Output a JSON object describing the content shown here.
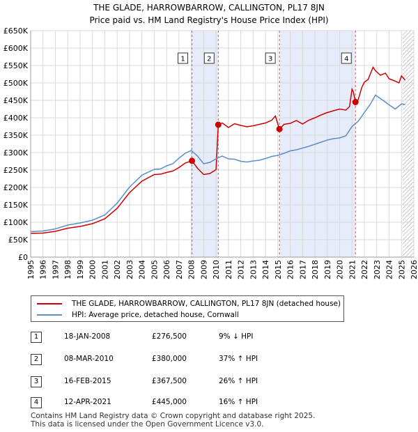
{
  "chart_data": {
    "type": "line",
    "title": "THE GLADE, HARROWBARROW, CALLINGTON, PL17 8JN",
    "subtitle": "Price paid vs. HM Land Registry's House Price Index (HPI)",
    "ylim": [
      0,
      650000
    ],
    "xlim": [
      1995,
      2026
    ],
    "y_ticks": [
      0,
      50000,
      100000,
      150000,
      200000,
      250000,
      300000,
      350000,
      400000,
      450000,
      500000,
      550000,
      600000,
      650000
    ],
    "y_tick_labels": [
      "£0",
      "£50K",
      "£100K",
      "£150K",
      "£200K",
      "£250K",
      "£300K",
      "£350K",
      "£400K",
      "£450K",
      "£500K",
      "£550K",
      "£600K",
      "£650K"
    ],
    "x_ticks": [
      1995,
      1996,
      1997,
      1998,
      1999,
      2000,
      2001,
      2002,
      2003,
      2004,
      2005,
      2006,
      2007,
      2008,
      2009,
      2010,
      2011,
      2012,
      2013,
      2014,
      2015,
      2016,
      2017,
      2018,
      2019,
      2020,
      2021,
      2022,
      2023,
      2024,
      2025,
      2026
    ],
    "x_tick_labels": [
      "1995",
      "1996",
      "1997",
      "1998",
      "1999",
      "2000",
      "2001",
      "2002",
      "2003",
      "2004",
      "2005",
      "2006",
      "2007",
      "2008",
      "2009",
      "2010",
      "2011",
      "2012",
      "2013",
      "2014",
      "2015",
      "2016",
      "2017",
      "2018",
      "2019",
      "2020",
      "2021",
      "2022",
      "2023",
      "2024",
      "2025",
      "2026"
    ],
    "grid": true,
    "series": [
      {
        "name": "THE GLADE, HARROWBARROW, CALLINGTON, PL17 8JN (detached house)",
        "color": "#cc0000",
        "points": [
          [
            1995.0,
            68000
          ],
          [
            1996.0,
            69000
          ],
          [
            1997.0,
            74000
          ],
          [
            1998.0,
            83000
          ],
          [
            1999.0,
            88000
          ],
          [
            2000.0,
            96000
          ],
          [
            2001.0,
            110000
          ],
          [
            2002.0,
            140000
          ],
          [
            2003.0,
            185000
          ],
          [
            2004.0,
            218000
          ],
          [
            2005.0,
            237000
          ],
          [
            2005.5,
            238000
          ],
          [
            2006.0,
            243000
          ],
          [
            2006.5,
            247000
          ],
          [
            2007.0,
            257000
          ],
          [
            2007.5,
            270000
          ],
          [
            2008.05,
            276500
          ],
          [
            2008.5,
            255000
          ],
          [
            2009.0,
            237000
          ],
          [
            2009.5,
            240000
          ],
          [
            2010.0,
            251000
          ],
          [
            2010.18,
            380000
          ],
          [
            2010.5,
            385000
          ],
          [
            2011.0,
            372000
          ],
          [
            2011.5,
            383000
          ],
          [
            2012.0,
            378000
          ],
          [
            2012.5,
            374000
          ],
          [
            2013.0,
            377000
          ],
          [
            2013.5,
            381000
          ],
          [
            2014.0,
            385000
          ],
          [
            2014.5,
            393000
          ],
          [
            2014.8,
            405000
          ],
          [
            2015.13,
            367500
          ],
          [
            2015.5,
            381000
          ],
          [
            2016.0,
            384000
          ],
          [
            2016.5,
            392000
          ],
          [
            2017.0,
            382000
          ],
          [
            2017.5,
            393000
          ],
          [
            2018.0,
            400000
          ],
          [
            2018.5,
            408000
          ],
          [
            2019.0,
            415000
          ],
          [
            2019.5,
            420000
          ],
          [
            2020.0,
            425000
          ],
          [
            2020.5,
            422000
          ],
          [
            2020.8,
            432000
          ],
          [
            2021.0,
            482000
          ],
          [
            2021.1,
            475000
          ],
          [
            2021.28,
            445000
          ],
          [
            2021.5,
            452000
          ],
          [
            2021.8,
            488000
          ],
          [
            2022.0,
            502000
          ],
          [
            2022.3,
            510000
          ],
          [
            2022.7,
            545000
          ],
          [
            2022.9,
            535000
          ],
          [
            2023.3,
            522000
          ],
          [
            2023.7,
            528000
          ],
          [
            2024.0,
            512000
          ],
          [
            2024.5,
            505000
          ],
          [
            2024.8,
            500000
          ],
          [
            2025.0,
            520000
          ],
          [
            2025.3,
            508000
          ]
        ]
      },
      {
        "name": "HPI: Average price, detached house, Cornwall",
        "color": "#5b8ec7",
        "points": [
          [
            1995.0,
            73000
          ],
          [
            1996.0,
            75000
          ],
          [
            1997.0,
            81000
          ],
          [
            1998.0,
            92000
          ],
          [
            1999.0,
            98000
          ],
          [
            2000.0,
            106000
          ],
          [
            2001.0,
            121000
          ],
          [
            2002.0,
            155000
          ],
          [
            2003.0,
            201000
          ],
          [
            2004.0,
            235000
          ],
          [
            2005.0,
            252000
          ],
          [
            2005.5,
            253000
          ],
          [
            2006.0,
            262000
          ],
          [
            2006.5,
            268000
          ],
          [
            2007.0,
            284000
          ],
          [
            2007.5,
            298000
          ],
          [
            2008.0,
            306000
          ],
          [
            2008.5,
            290000
          ],
          [
            2009.0,
            268000
          ],
          [
            2009.5,
            272000
          ],
          [
            2010.0,
            282000
          ],
          [
            2010.5,
            290000
          ],
          [
            2011.0,
            282000
          ],
          [
            2011.5,
            281000
          ],
          [
            2012.0,
            275000
          ],
          [
            2012.5,
            273000
          ],
          [
            2013.0,
            276000
          ],
          [
            2013.5,
            278000
          ],
          [
            2014.0,
            283000
          ],
          [
            2014.5,
            289000
          ],
          [
            2015.0,
            292000
          ],
          [
            2015.5,
            298000
          ],
          [
            2016.0,
            305000
          ],
          [
            2016.5,
            308000
          ],
          [
            2017.0,
            313000
          ],
          [
            2017.5,
            318000
          ],
          [
            2018.0,
            324000
          ],
          [
            2018.5,
            330000
          ],
          [
            2019.0,
            336000
          ],
          [
            2019.5,
            340000
          ],
          [
            2020.0,
            342000
          ],
          [
            2020.5,
            348000
          ],
          [
            2021.0,
            375000
          ],
          [
            2021.5,
            390000
          ],
          [
            2022.0,
            415000
          ],
          [
            2022.5,
            440000
          ],
          [
            2022.9,
            465000
          ],
          [
            2023.3,
            455000
          ],
          [
            2023.7,
            445000
          ],
          [
            2024.0,
            437000
          ],
          [
            2024.5,
            425000
          ],
          [
            2025.0,
            440000
          ],
          [
            2025.3,
            438000
          ]
        ]
      }
    ],
    "events": [
      {
        "label": "1",
        "x": 2008.05,
        "value": 276500
      },
      {
        "label": "2",
        "x": 2010.18,
        "value": 380000
      },
      {
        "label": "3",
        "x": 2015.13,
        "value": 367500
      },
      {
        "label": "4",
        "x": 2021.28,
        "value": 445000
      }
    ],
    "shaded_spans": [
      [
        2008.05,
        2010.18
      ],
      [
        2015.13,
        2021.28
      ]
    ],
    "hatched_from": 2025.1
  },
  "legend": {
    "items": [
      {
        "label": "THE GLADE, HARROWBARROW, CALLINGTON, PL17 8JN (detached house)",
        "color": "#cc0000"
      },
      {
        "label": "HPI: Average price, detached house, Cornwall",
        "color": "#5b8ec7"
      }
    ]
  },
  "transactions": [
    {
      "num": "1",
      "date": "18-JAN-2008",
      "price": "£276,500",
      "hpi": "9% ↓ HPI"
    },
    {
      "num": "2",
      "date": "08-MAR-2010",
      "price": "£380,000",
      "hpi": "37% ↑ HPI"
    },
    {
      "num": "3",
      "date": "16-FEB-2015",
      "price": "£367,500",
      "hpi": "26% ↑ HPI"
    },
    {
      "num": "4",
      "date": "12-APR-2021",
      "price": "£445,000",
      "hpi": "16% ↑ HPI"
    }
  ],
  "footer": {
    "line1": "Contains HM Land Registry data © Crown copyright and database right 2025.",
    "line2": "This data is licensed under the Open Government Licence v3.0."
  }
}
